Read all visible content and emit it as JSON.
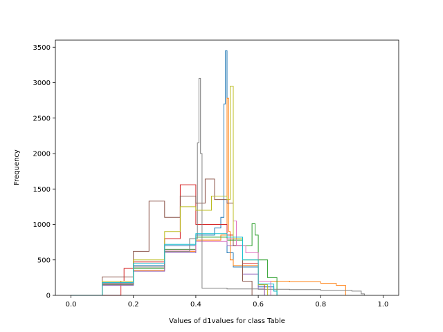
{
  "chart_data": {
    "type": "step-histogram",
    "title": "",
    "xlabel": "Values of d1values for class Table",
    "ylabel": "Frequency",
    "xlim": [
      -0.05,
      1.05
    ],
    "ylim": [
      0,
      3600
    ],
    "xticks": [
      0.0,
      0.2,
      0.4,
      0.6,
      0.8,
      1.0
    ],
    "xtick_labels": [
      "0.0",
      "0.2",
      "0.4",
      "0.6",
      "0.8",
      "1.0"
    ],
    "yticks": [
      0,
      500,
      1000,
      1500,
      2000,
      2500,
      3000,
      3500
    ],
    "ytick_labels": [
      "0",
      "500",
      "1000",
      "1500",
      "2000",
      "2500",
      "3000",
      "3500"
    ],
    "grid": false,
    "legend": "none",
    "series": [
      {
        "color": "#1f77b4",
        "x": [
          0.0,
          0.1,
          0.2,
          0.3,
          0.4,
          0.46,
          0.48,
          0.49,
          0.495,
          0.5,
          0.52,
          0.6,
          0.65,
          0.66
        ],
        "y": [
          0,
          180,
          420,
          700,
          850,
          950,
          1100,
          2700,
          3450,
          600,
          400,
          120,
          60,
          0
        ]
      },
      {
        "color": "#ff7f0e",
        "x": [
          0.0,
          0.1,
          0.2,
          0.3,
          0.4,
          0.48,
          0.5,
          0.505,
          0.51,
          0.52,
          0.6,
          0.7,
          0.8,
          0.85,
          0.88
        ],
        "y": [
          0,
          150,
          350,
          620,
          780,
          850,
          2780,
          900,
          500,
          420,
          200,
          190,
          170,
          140,
          0
        ]
      },
      {
        "color": "#2ca02c",
        "x": [
          0.0,
          0.1,
          0.2,
          0.3,
          0.4,
          0.5,
          0.55,
          0.58,
          0.59,
          0.6,
          0.63,
          0.66
        ],
        "y": [
          0,
          160,
          380,
          650,
          820,
          780,
          700,
          1010,
          850,
          500,
          250,
          0
        ]
      },
      {
        "color": "#d62728",
        "x": [
          0.0,
          0.15,
          0.16,
          0.17,
          0.2,
          0.3,
          0.35,
          0.4,
          0.5,
          0.52,
          0.55,
          0.6,
          0.62
        ],
        "y": [
          0,
          0,
          200,
          380,
          470,
          800,
          1560,
          1000,
          850,
          700,
          450,
          150,
          0
        ]
      },
      {
        "color": "#9467bd",
        "x": [
          0.0,
          0.1,
          0.2,
          0.3,
          0.4,
          0.5,
          0.55,
          0.6,
          0.62
        ],
        "y": [
          0,
          140,
          340,
          600,
          760,
          700,
          300,
          90,
          0
        ]
      },
      {
        "color": "#8c564b",
        "x": [
          0.0,
          0.1,
          0.2,
          0.25,
          0.3,
          0.35,
          0.4,
          0.43,
          0.46,
          0.5,
          0.52,
          0.55,
          0.58
        ],
        "y": [
          0,
          260,
          620,
          1330,
          1100,
          1400,
          1300,
          1640,
          1350,
          1300,
          700,
          200,
          0
        ]
      },
      {
        "color": "#e377c2",
        "x": [
          0.0,
          0.1,
          0.2,
          0.3,
          0.4,
          0.5,
          0.52,
          0.53,
          0.56,
          0.6,
          0.64
        ],
        "y": [
          0,
          170,
          400,
          640,
          760,
          800,
          1050,
          700,
          600,
          200,
          0
        ]
      },
      {
        "color": "#7f7f7f",
        "x": [
          0.0,
          0.1,
          0.2,
          0.3,
          0.38,
          0.405,
          0.41,
          0.415,
          0.42,
          0.5,
          0.6,
          0.7,
          0.8,
          0.9,
          0.93,
          0.94
        ],
        "y": [
          0,
          150,
          400,
          620,
          800,
          2150,
          3060,
          2000,
          100,
          90,
          85,
          80,
          70,
          60,
          20,
          0
        ]
      },
      {
        "color": "#bcbd22",
        "x": [
          0.0,
          0.1,
          0.2,
          0.3,
          0.35,
          0.4,
          0.45,
          0.5,
          0.51,
          0.52,
          0.55,
          0.6,
          0.63
        ],
        "y": [
          0,
          200,
          500,
          900,
          1250,
          1200,
          1400,
          1350,
          2950,
          800,
          500,
          150,
          0
        ]
      },
      {
        "color": "#17becf",
        "x": [
          0.0,
          0.1,
          0.2,
          0.3,
          0.4,
          0.5,
          0.55,
          0.6,
          0.65,
          0.66
        ],
        "y": [
          0,
          180,
          450,
          720,
          870,
          820,
          500,
          160,
          60,
          0
        ]
      }
    ]
  }
}
